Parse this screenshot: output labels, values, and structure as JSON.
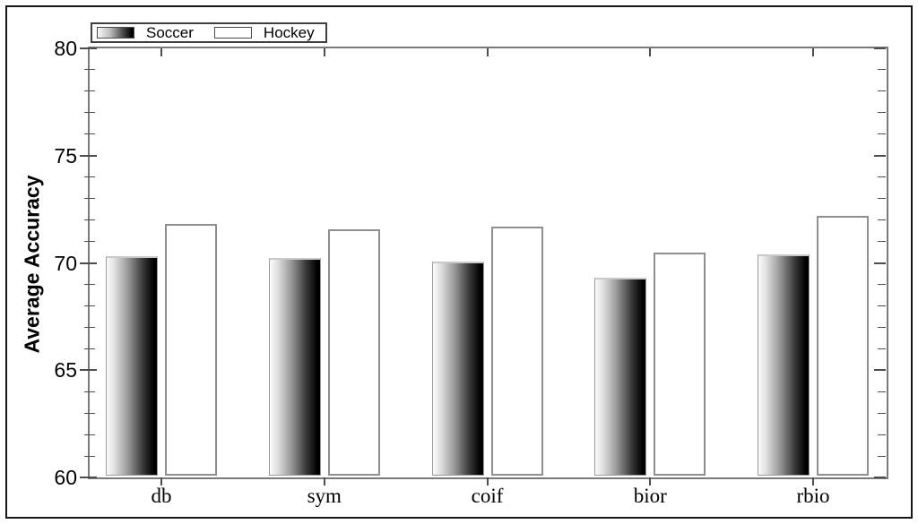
{
  "figure": {
    "background": "#ffffff",
    "outer_border_color": "#161616",
    "axis_frame_color": "#7a7a7a",
    "tick_color": "#4d4d4d"
  },
  "chart_data": {
    "type": "bar",
    "title": "",
    "xlabel": "",
    "ylabel": "Average Accuracy",
    "categories": [
      "db",
      "sym",
      "coif",
      "bior",
      "rbio"
    ],
    "series": [
      {
        "name": "Soccer",
        "values": [
          70.3,
          70.25,
          70.05,
          69.3,
          70.4
        ],
        "fill": "gradient-light-to-black"
      },
      {
        "name": "Hockey",
        "values": [
          71.8,
          71.55,
          71.7,
          70.5,
          72.2
        ],
        "fill": "#ffffff"
      }
    ],
    "ylim": [
      60,
      80
    ],
    "y_major_step": 5,
    "y_minor_step": 1,
    "y_major_ticks": [
      60,
      65,
      70,
      75,
      80
    ],
    "grid": false,
    "legend_position": "top-left",
    "bar_outline_color": "#8f8f8f"
  }
}
